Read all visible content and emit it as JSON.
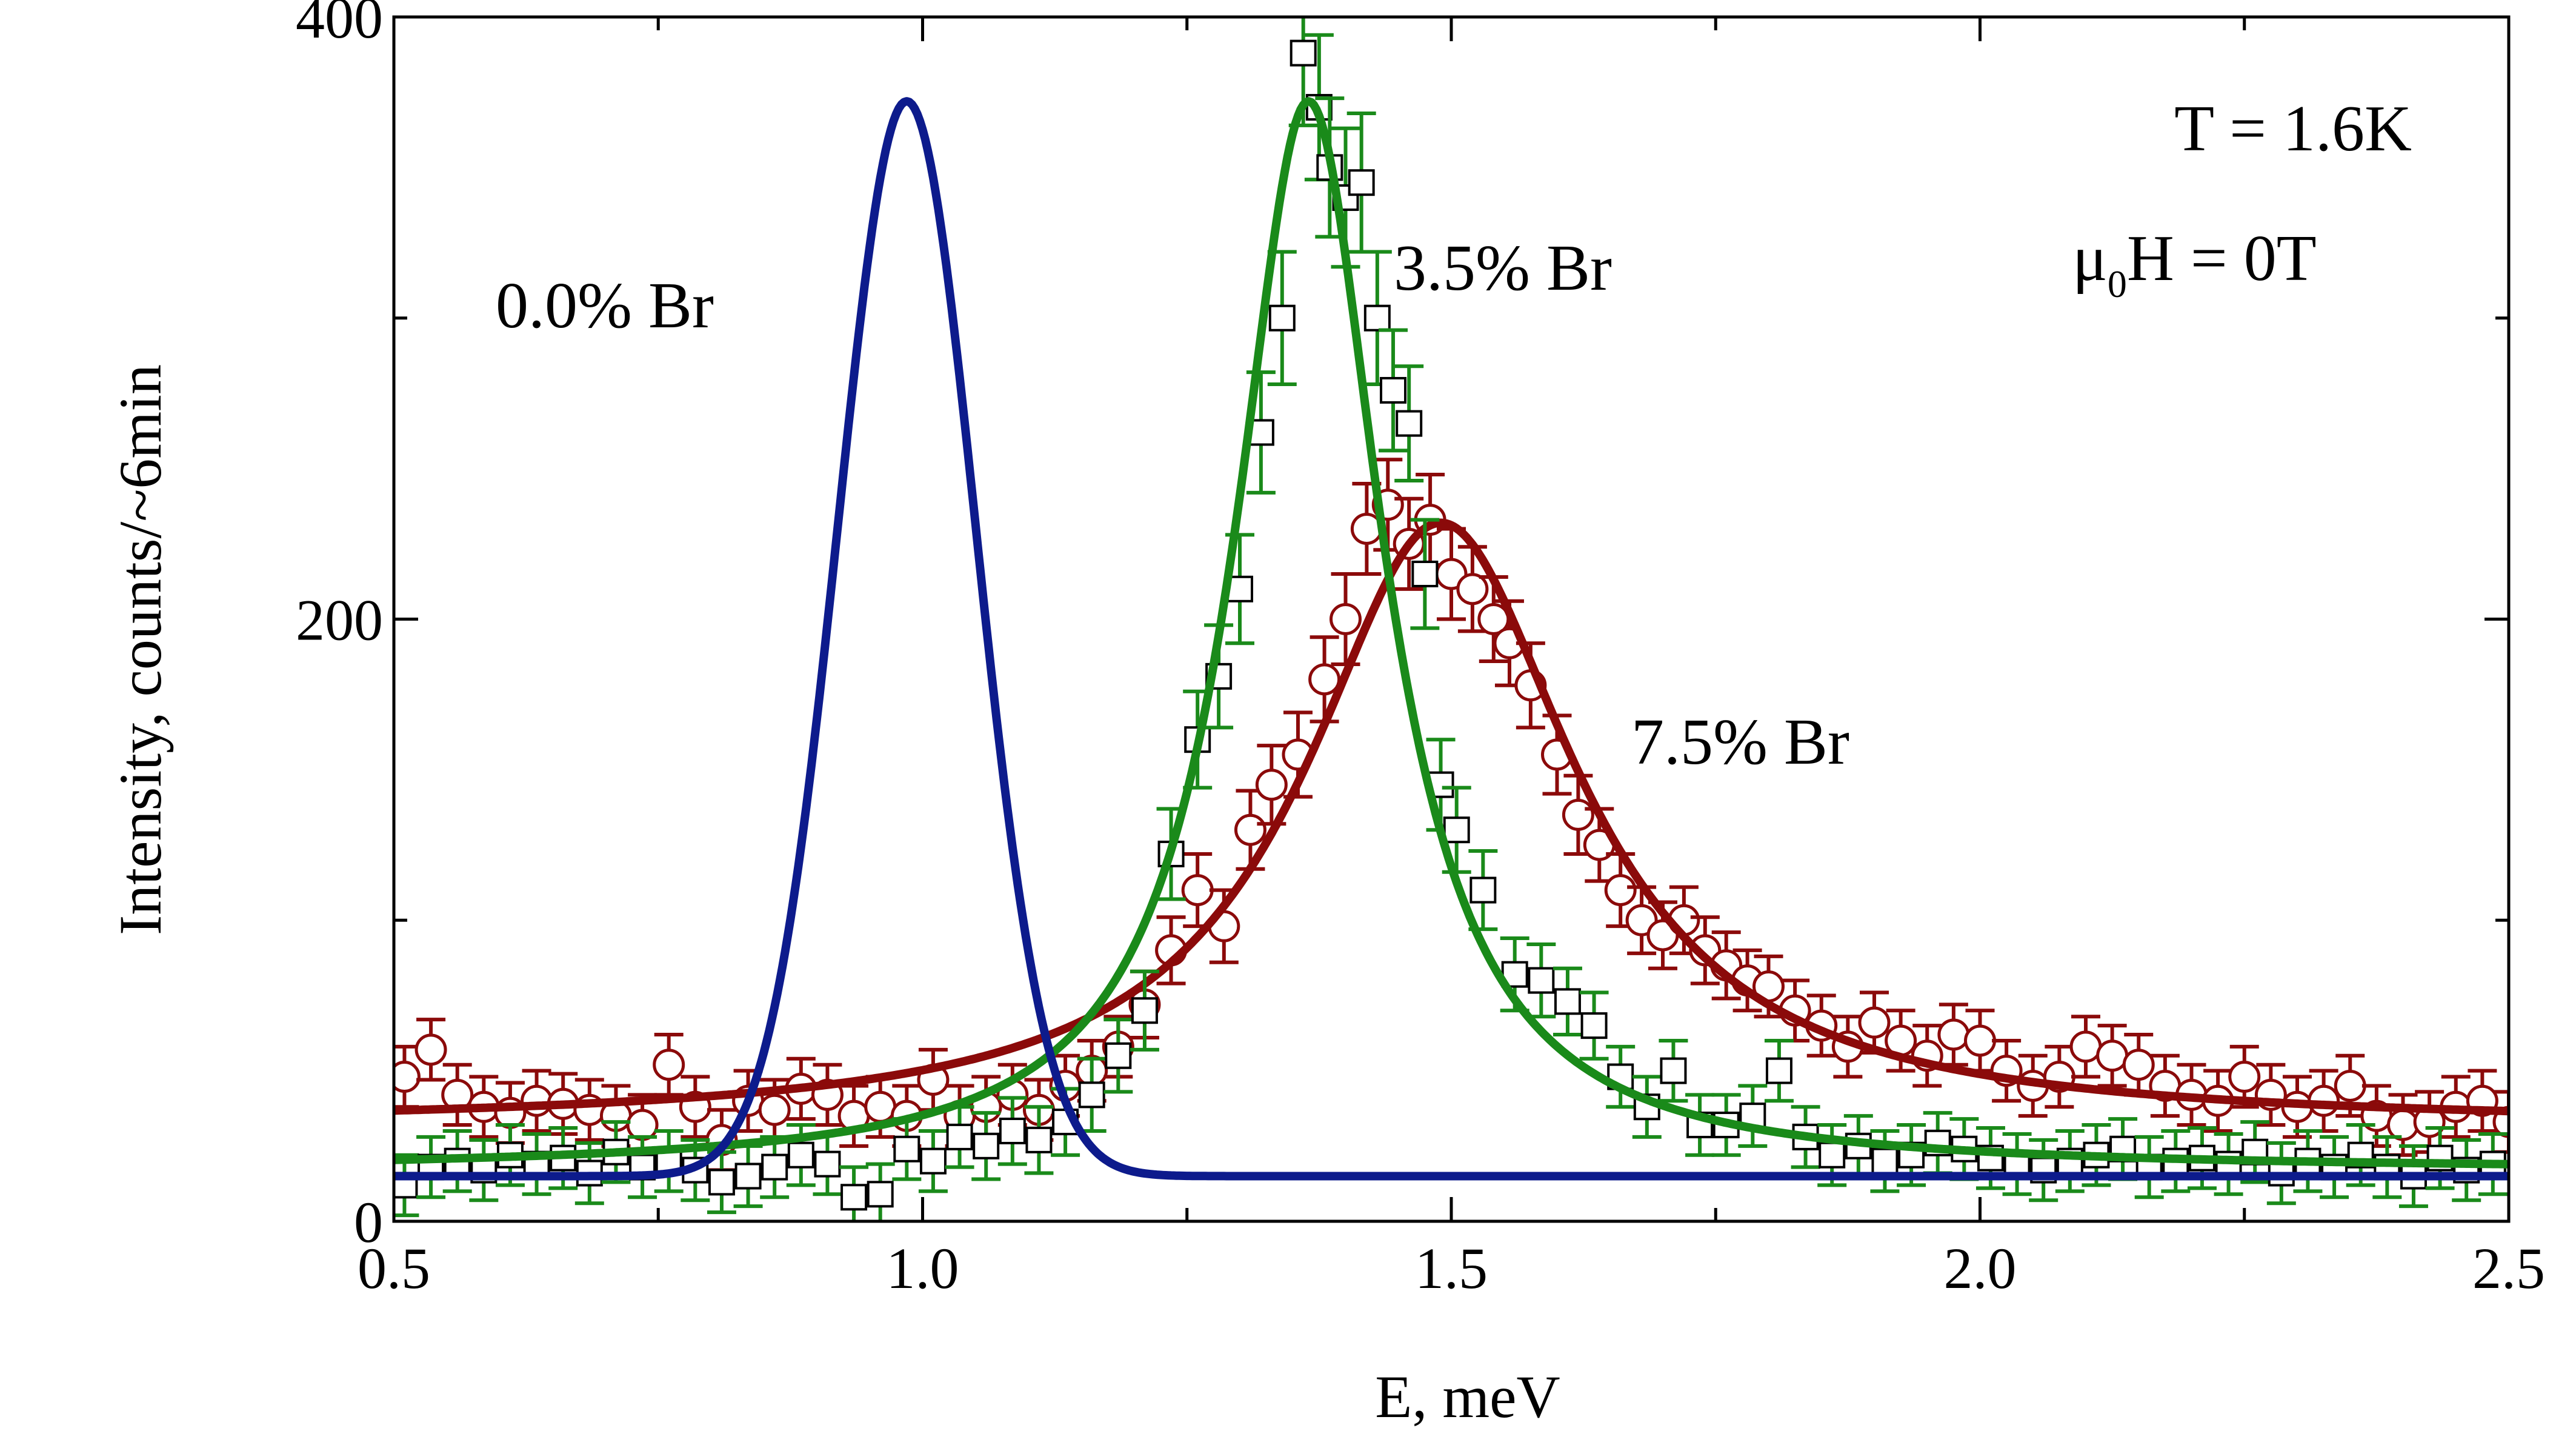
{
  "chart_data": {
    "type": "scatter",
    "title": "",
    "xlabel": "E, meV",
    "ylabel": "Intensity, counts/~6min",
    "xlim": [
      0.5,
      2.5
    ],
    "ylim": [
      0,
      400
    ],
    "xticks": [
      "0.5",
      "1.0",
      "1.5",
      "2.0",
      "2.5"
    ],
    "xtick_values": [
      0.5,
      1.0,
      1.5,
      2.0,
      2.5
    ],
    "yticks": [
      "0",
      "200",
      "400"
    ],
    "ytick_values": [
      0,
      200,
      400
    ],
    "grid": false,
    "annotations": {
      "temperature": "T = 1.6K",
      "field_mu": "μ",
      "field_sub": "0",
      "field_rest": "H = 0T"
    },
    "series": [
      {
        "name": "0.0% Br",
        "label": "0.0% Br",
        "kind": "fit",
        "color": "#0d1b8c",
        "model": "gaussian",
        "center": 0.985,
        "amplitude": 357,
        "sigma": 0.065,
        "baseline": 15
      },
      {
        "name": "3.5% Br",
        "label": "3.5% Br",
        "kind": "data+fit",
        "color": "#1a8a1a",
        "marker": "square",
        "model": "lorentzian",
        "center": 1.365,
        "amplitude": 355,
        "gamma": 0.085,
        "baseline": 17,
        "data": [
          [
            0.51,
            12,
            10
          ],
          [
            0.535,
            18,
            10
          ],
          [
            0.56,
            20,
            10
          ],
          [
            0.585,
            17,
            10
          ],
          [
            0.61,
            22,
            10
          ],
          [
            0.635,
            19,
            10
          ],
          [
            0.66,
            21,
            10
          ],
          [
            0.685,
            16,
            10
          ],
          [
            0.71,
            23,
            10
          ],
          [
            0.735,
            18,
            10
          ],
          [
            0.76,
            20,
            10
          ],
          [
            0.785,
            17,
            10
          ],
          [
            0.81,
            13,
            10
          ],
          [
            0.835,
            15,
            10
          ],
          [
            0.86,
            18,
            10
          ],
          [
            0.885,
            22,
            10
          ],
          [
            0.91,
            19,
            10
          ],
          [
            0.935,
            8,
            10
          ],
          [
            0.96,
            9,
            10
          ],
          [
            0.985,
            24,
            10
          ],
          [
            1.01,
            20,
            10
          ],
          [
            1.035,
            28,
            10
          ],
          [
            1.06,
            25,
            11
          ],
          [
            1.085,
            30,
            11
          ],
          [
            1.11,
            27,
            11
          ],
          [
            1.135,
            33,
            11
          ],
          [
            1.16,
            42,
            12
          ],
          [
            1.185,
            55,
            12
          ],
          [
            1.21,
            70,
            13
          ],
          [
            1.235,
            122,
            15
          ],
          [
            1.26,
            160,
            16
          ],
          [
            1.28,
            181,
            17
          ],
          [
            1.3,
            210,
            18
          ],
          [
            1.32,
            262,
            20
          ],
          [
            1.34,
            300,
            22
          ],
          [
            1.36,
            388,
            24
          ],
          [
            1.375,
            370,
            24
          ],
          [
            1.385,
            350,
            23
          ],
          [
            1.4,
            340,
            23
          ],
          [
            1.415,
            345,
            23
          ],
          [
            1.43,
            300,
            22
          ],
          [
            1.445,
            276,
            20
          ],
          [
            1.46,
            265,
            19
          ],
          [
            1.475,
            215,
            18
          ],
          [
            1.49,
            145,
            15
          ],
          [
            1.505,
            130,
            14
          ],
          [
            1.53,
            110,
            13
          ],
          [
            1.56,
            82,
            12
          ],
          [
            1.585,
            80,
            12
          ],
          [
            1.61,
            73,
            11
          ],
          [
            1.635,
            65,
            11
          ],
          [
            1.66,
            48,
            10
          ],
          [
            1.685,
            38,
            10
          ],
          [
            1.71,
            50,
            10
          ],
          [
            1.735,
            32,
            10
          ],
          [
            1.76,
            32,
            10
          ],
          [
            1.785,
            35,
            10
          ],
          [
            1.81,
            50,
            10
          ],
          [
            1.835,
            28,
            10
          ],
          [
            1.86,
            22,
            10
          ],
          [
            1.885,
            25,
            10
          ],
          [
            1.91,
            20,
            10
          ],
          [
            1.935,
            22,
            10
          ],
          [
            1.96,
            26,
            10
          ],
          [
            1.985,
            24,
            10
          ],
          [
            2.01,
            21,
            10
          ],
          [
            2.035,
            19,
            10
          ],
          [
            2.06,
            17,
            10
          ],
          [
            2.085,
            20,
            10
          ],
          [
            2.11,
            22,
            10
          ],
          [
            2.135,
            24,
            10
          ],
          [
            2.16,
            18,
            10
          ],
          [
            2.185,
            20,
            10
          ],
          [
            2.21,
            21,
            10
          ],
          [
            2.235,
            19,
            10
          ],
          [
            2.26,
            23,
            10
          ],
          [
            2.285,
            16,
            10
          ],
          [
            2.31,
            20,
            10
          ],
          [
            2.335,
            18,
            10
          ],
          [
            2.36,
            22,
            10
          ],
          [
            2.385,
            18,
            10
          ],
          [
            2.41,
            15,
            10
          ],
          [
            2.435,
            21,
            10
          ],
          [
            2.46,
            17,
            10
          ],
          [
            2.485,
            19,
            10
          ]
        ]
      },
      {
        "name": "7.5% Br",
        "label": "7.5% Br",
        "kind": "data+fit",
        "color": "#8b0a0a",
        "marker": "circle",
        "model": "lorentzian",
        "center": 1.49,
        "amplitude": 200,
        "gamma": 0.155,
        "baseline": 32,
        "data": [
          [
            0.51,
            48,
            10
          ],
          [
            0.535,
            57,
            10
          ],
          [
            0.56,
            42,
            10
          ],
          [
            0.585,
            38,
            10
          ],
          [
            0.61,
            36,
            10
          ],
          [
            0.635,
            40,
            10
          ],
          [
            0.66,
            39,
            10
          ],
          [
            0.685,
            37,
            10
          ],
          [
            0.71,
            35,
            10
          ],
          [
            0.735,
            32,
            10
          ],
          [
            0.76,
            52,
            10
          ],
          [
            0.785,
            38,
            10
          ],
          [
            0.81,
            27,
            10
          ],
          [
            0.835,
            40,
            10
          ],
          [
            0.86,
            37,
            10
          ],
          [
            0.885,
            44,
            10
          ],
          [
            0.91,
            42,
            10
          ],
          [
            0.935,
            35,
            10
          ],
          [
            0.96,
            38,
            10
          ],
          [
            0.985,
            35,
            10
          ],
          [
            1.01,
            47,
            10
          ],
          [
            1.035,
            35,
            10
          ],
          [
            1.06,
            38,
            10
          ],
          [
            1.085,
            42,
            10
          ],
          [
            1.11,
            37,
            10
          ],
          [
            1.135,
            45,
            10
          ],
          [
            1.16,
            50,
            10
          ],
          [
            1.185,
            58,
            10
          ],
          [
            1.21,
            72,
            11
          ],
          [
            1.235,
            90,
            11
          ],
          [
            1.26,
            110,
            12
          ],
          [
            1.285,
            98,
            12
          ],
          [
            1.31,
            130,
            13
          ],
          [
            1.33,
            145,
            13
          ],
          [
            1.355,
            155,
            14
          ],
          [
            1.38,
            180,
            14
          ],
          [
            1.4,
            200,
            15
          ],
          [
            1.42,
            230,
            15
          ],
          [
            1.44,
            238,
            15
          ],
          [
            1.46,
            225,
            15
          ],
          [
            1.48,
            233,
            15
          ],
          [
            1.5,
            215,
            15
          ],
          [
            1.52,
            210,
            14
          ],
          [
            1.54,
            200,
            14
          ],
          [
            1.555,
            192,
            14
          ],
          [
            1.575,
            178,
            14
          ],
          [
            1.6,
            155,
            13
          ],
          [
            1.62,
            135,
            13
          ],
          [
            1.64,
            125,
            12
          ],
          [
            1.66,
            110,
            12
          ],
          [
            1.68,
            100,
            11
          ],
          [
            1.7,
            95,
            11
          ],
          [
            1.72,
            100,
            11
          ],
          [
            1.74,
            90,
            11
          ],
          [
            1.76,
            85,
            11
          ],
          [
            1.78,
            80,
            10
          ],
          [
            1.8,
            78,
            10
          ],
          [
            1.825,
            70,
            10
          ],
          [
            1.85,
            65,
            10
          ],
          [
            1.875,
            58,
            10
          ],
          [
            1.9,
            66,
            10
          ],
          [
            1.925,
            60,
            10
          ],
          [
            1.95,
            55,
            10
          ],
          [
            1.975,
            62,
            10
          ],
          [
            2.0,
            60,
            10
          ],
          [
            2.025,
            50,
            10
          ],
          [
            2.05,
            45,
            10
          ],
          [
            2.075,
            48,
            10
          ],
          [
            2.1,
            58,
            10
          ],
          [
            2.125,
            55,
            10
          ],
          [
            2.15,
            52,
            10
          ],
          [
            2.175,
            45,
            10
          ],
          [
            2.2,
            42,
            10
          ],
          [
            2.225,
            40,
            10
          ],
          [
            2.25,
            48,
            10
          ],
          [
            2.275,
            42,
            10
          ],
          [
            2.3,
            38,
            10
          ],
          [
            2.325,
            40,
            10
          ],
          [
            2.35,
            45,
            10
          ],
          [
            2.375,
            35,
            10
          ],
          [
            2.4,
            32,
            10
          ],
          [
            2.425,
            33,
            10
          ],
          [
            2.45,
            38,
            10
          ],
          [
            2.475,
            40,
            10
          ],
          [
            2.5,
            33,
            10
          ]
        ]
      }
    ]
  }
}
